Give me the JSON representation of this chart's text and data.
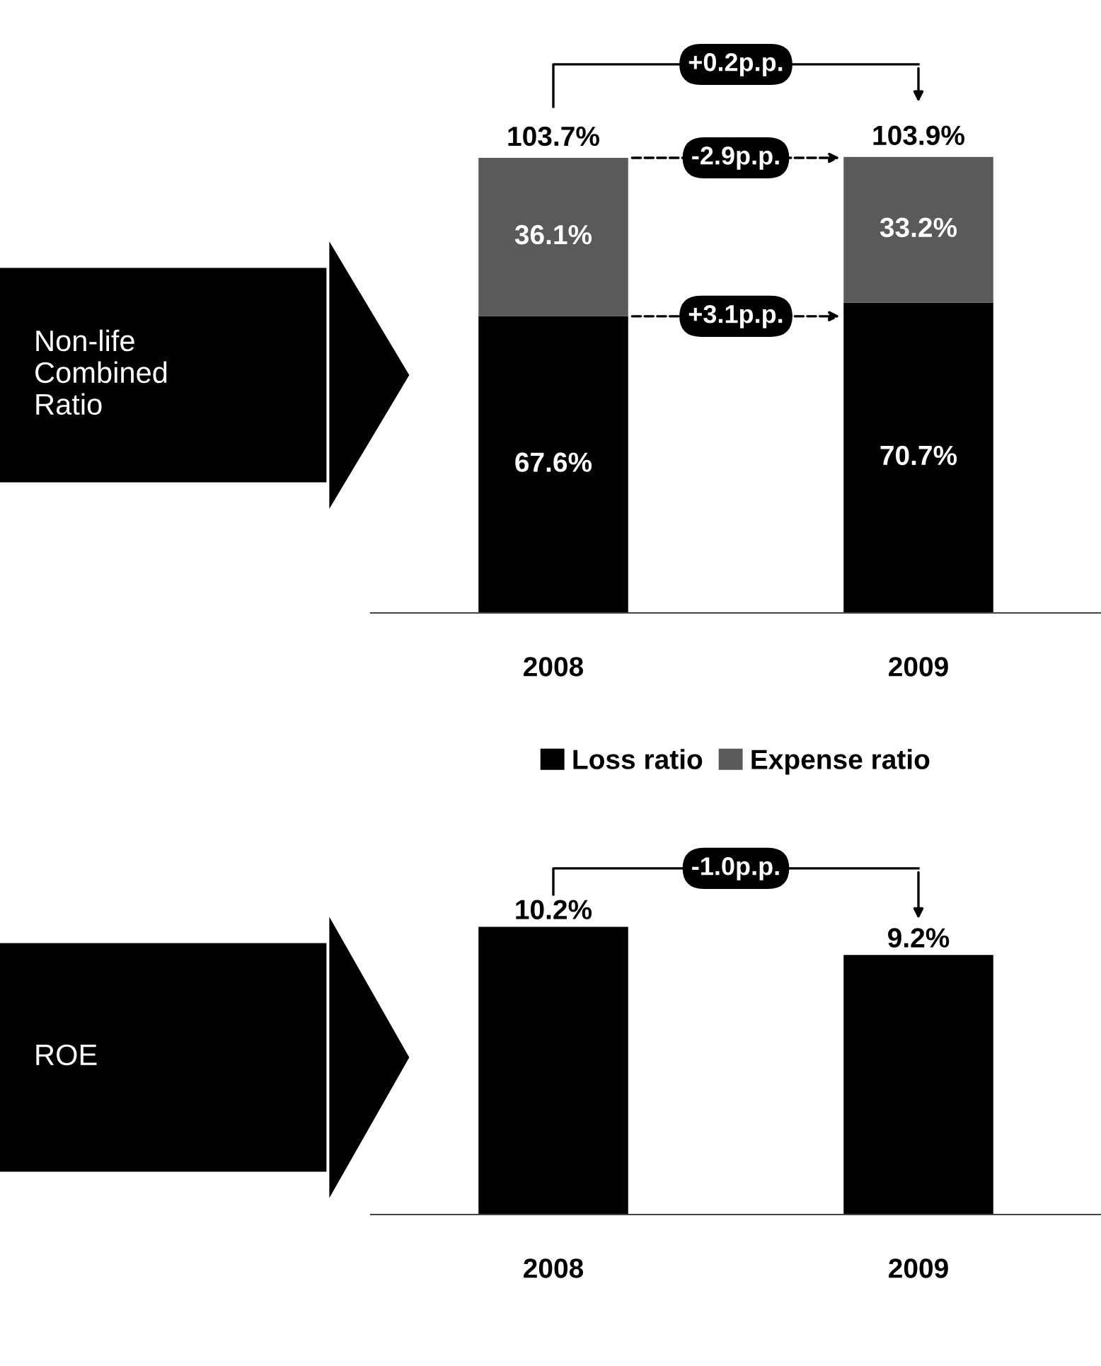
{
  "chart_data": [
    {
      "type": "bar",
      "ylabel": "Non-life\nCombined\nRatio",
      "categories": [
        "2008",
        "2009"
      ],
      "stacked": true,
      "data_labels": true,
      "legend": "bottom",
      "series": [
        {
          "name": "Loss ratio",
          "color": "#000000",
          "values": [
            67.6,
            70.7
          ],
          "value_labels": [
            "67.6%",
            "70.7%"
          ]
        },
        {
          "name": "Expense ratio",
          "color": "#5a5a5a",
          "values": [
            36.1,
            33.2
          ],
          "value_labels": [
            "36.1%",
            "33.2%"
          ]
        }
      ],
      "totals": [
        "103.7%",
        "103.9%"
      ],
      "annotations": [
        "+0.2p.p.",
        "-2.9p.p.",
        "+3.1p.p."
      ]
    },
    {
      "type": "bar",
      "ylabel": "ROE",
      "categories": [
        "2008",
        "2009"
      ],
      "data_labels": true,
      "series": [
        {
          "color": "#000000",
          "values": [
            10.2,
            9.2
          ],
          "value_labels": [
            "10.2%",
            "9.2%"
          ]
        }
      ],
      "annotations": [
        "-1.0p.p."
      ]
    }
  ]
}
